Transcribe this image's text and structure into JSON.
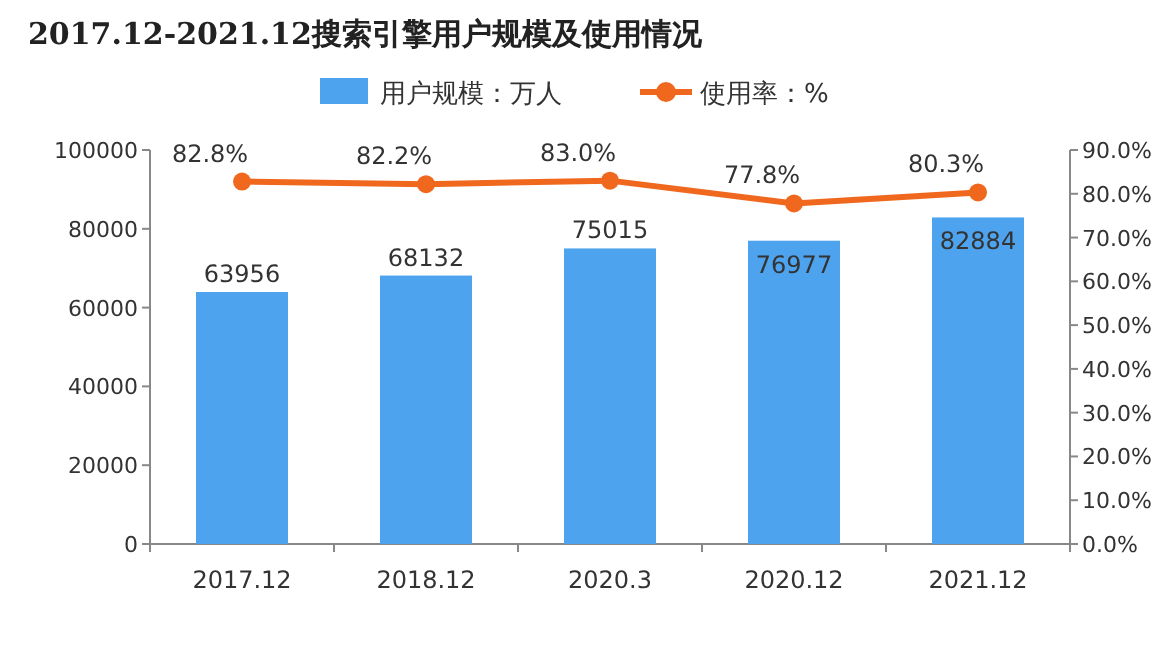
{
  "chart_data": {
    "type": "bar",
    "title": "2017.12-2021.12搜索引擎用户规模及使用情况",
    "categories": [
      "2017.12",
      "2018.12",
      "2020.3",
      "2020.12",
      "2021.12"
    ],
    "series": [
      {
        "name": "用户规模：万人",
        "color": "#4da3ee",
        "values": [
          63956,
          68132,
          75015,
          76977,
          82884
        ],
        "value_labels": [
          "63956",
          "68132",
          "75015",
          "76977",
          "82884"
        ]
      },
      {
        "name": "使用率：%",
        "type": "line",
        "axis": "y2",
        "color": "#f0681e",
        "values": [
          82.8,
          82.2,
          83.0,
          77.8,
          80.3
        ],
        "value_labels": [
          "82.8%",
          "82.2%",
          "83.0%",
          "77.8%",
          "80.3%"
        ]
      }
    ],
    "ylim": [
      0,
      100000
    ],
    "yticks": [
      0,
      20000,
      40000,
      60000,
      80000,
      100000
    ],
    "y2lim": [
      0,
      90
    ],
    "y2ticks": [
      {
        "value": 0,
        "label": "0.0%"
      },
      {
        "value": 10,
        "label": "10.0%"
      },
      {
        "value": 20,
        "label": "20.0%"
      },
      {
        "value": 30,
        "label": "30.0%"
      },
      {
        "value": 40,
        "label": "40.0%"
      },
      {
        "value": 50,
        "label": "50.0%"
      },
      {
        "value": 60,
        "label": "60.0%"
      },
      {
        "value": 70,
        "label": "70.0%"
      },
      {
        "value": 80,
        "label": "80.0%"
      },
      {
        "value": 90,
        "label": "90.0%"
      }
    ],
    "legend": "top",
    "marker": "circle",
    "line_style": "solid",
    "grid": false
  }
}
